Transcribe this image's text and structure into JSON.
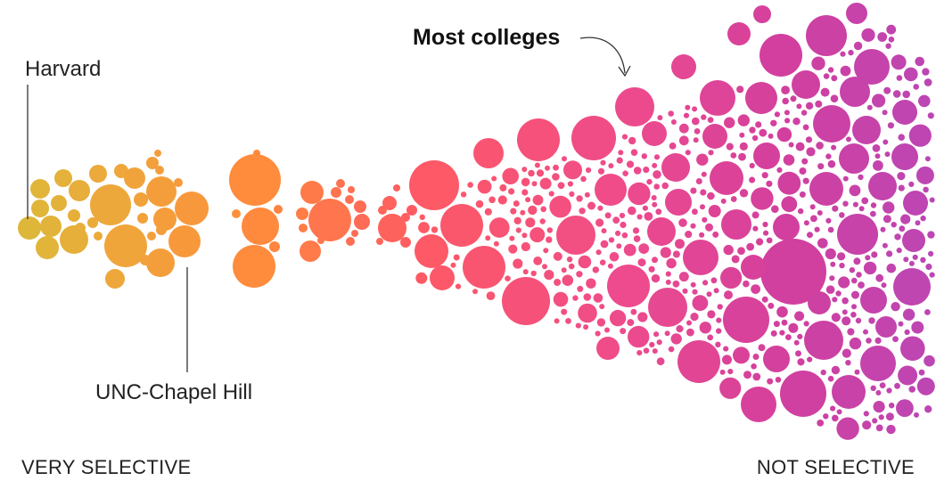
{
  "chart_data": {
    "type": "beeswarm",
    "title": "",
    "encoding": "Each circle is a college; horizontal position shows selectivity, circle size shows college size.",
    "x_axis": {
      "left_label": "VERY SELECTIVE",
      "right_label": "NOT SELECTIVE"
    },
    "color_scale": [
      "#ddb83a",
      "#f0a53b",
      "#ff8a3c",
      "#fe5a64",
      "#ee4b8c",
      "#d23f9e",
      "#bc46b4"
    ],
    "annotations": [
      {
        "text": "Harvard",
        "style": "normal"
      },
      {
        "text": "UNC-Chapel Hill",
        "style": "normal"
      },
      {
        "text": "Most colleges",
        "style": "bold"
      }
    ]
  }
}
